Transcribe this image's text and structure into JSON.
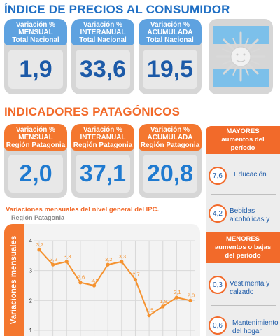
{
  "cpi": {
    "title": "ÍNDICE DE PRECIOS AL CONSUMIDOR",
    "cards": [
      {
        "l1": "Variación %",
        "l2": "MENSUAL",
        "l3": "Total Nacional",
        "value": "1,9"
      },
      {
        "l1": "Variación %",
        "l2": "INTERANUAL",
        "l3": "Total Nacional",
        "value": "33,6"
      },
      {
        "l1": "Variación %",
        "l2": "ACUMULADA",
        "l3": "Total Nacional",
        "value": "19,5"
      }
    ]
  },
  "patagonia": {
    "title": "INDICADORES PATAGÓNICOS",
    "cards": [
      {
        "l1": "Variación %",
        "l2": "MENSUAL",
        "l3": "Región Patagonia",
        "value": "2,0"
      },
      {
        "l1": "Variación %",
        "l2": "INTERANUAL",
        "l3": "Región Patagonia",
        "value": "37,1"
      },
      {
        "l1": "Variación %",
        "l2": "ACUMULADA",
        "l3": "Región Patagonia",
        "value": "20,8"
      }
    ]
  },
  "sidebar": {
    "mayores": {
      "l1": "MAYORES",
      "l2": "aumentos del",
      "l3": "período"
    },
    "mayores_items": [
      {
        "value": "7,6",
        "l1": "Educación",
        "l2": ""
      },
      {
        "value": "4,2",
        "l1": "Bebidas",
        "l2": "alcohólicas y"
      }
    ],
    "menores": {
      "l1": "MENORES",
      "l2": "aumentos o bajas",
      "l3": "del período"
    },
    "menores_items": [
      {
        "value": "0,3",
        "l1": "Vestimenta y",
        "l2": "calzado"
      },
      {
        "value": "0,6",
        "l1": "Mantenimiento",
        "l2": "del hogar"
      }
    ]
  },
  "chart_title": "Variaciones mensuales del nivel general del IPC.",
  "chart_subtitle": "Región Patagonia",
  "chart_data": {
    "type": "line",
    "ylabel": "Variaciones mensuales",
    "ylim": [
      1,
      4
    ],
    "yticks": [
      1,
      2,
      3,
      4
    ],
    "values": [
      3.7,
      3.2,
      3.3,
      2.6,
      2.5,
      3.2,
      3.3,
      2.7,
      1.5,
      1.8,
      2.1,
      2.0
    ],
    "labels": [
      "3,7",
      "3,2",
      "3,3",
      "2,6",
      "2,5",
      "3,2",
      "3,3",
      "2,7",
      "1,5",
      "1,8",
      "2,1",
      "2,0"
    ],
    "grid": true,
    "color": "#f5922f"
  },
  "colors": {
    "blue_title": "#1f6fc4",
    "orange": "#f26a2a",
    "blue_header": "#5ea2e0",
    "value_blue": "#1c5aa8"
  }
}
